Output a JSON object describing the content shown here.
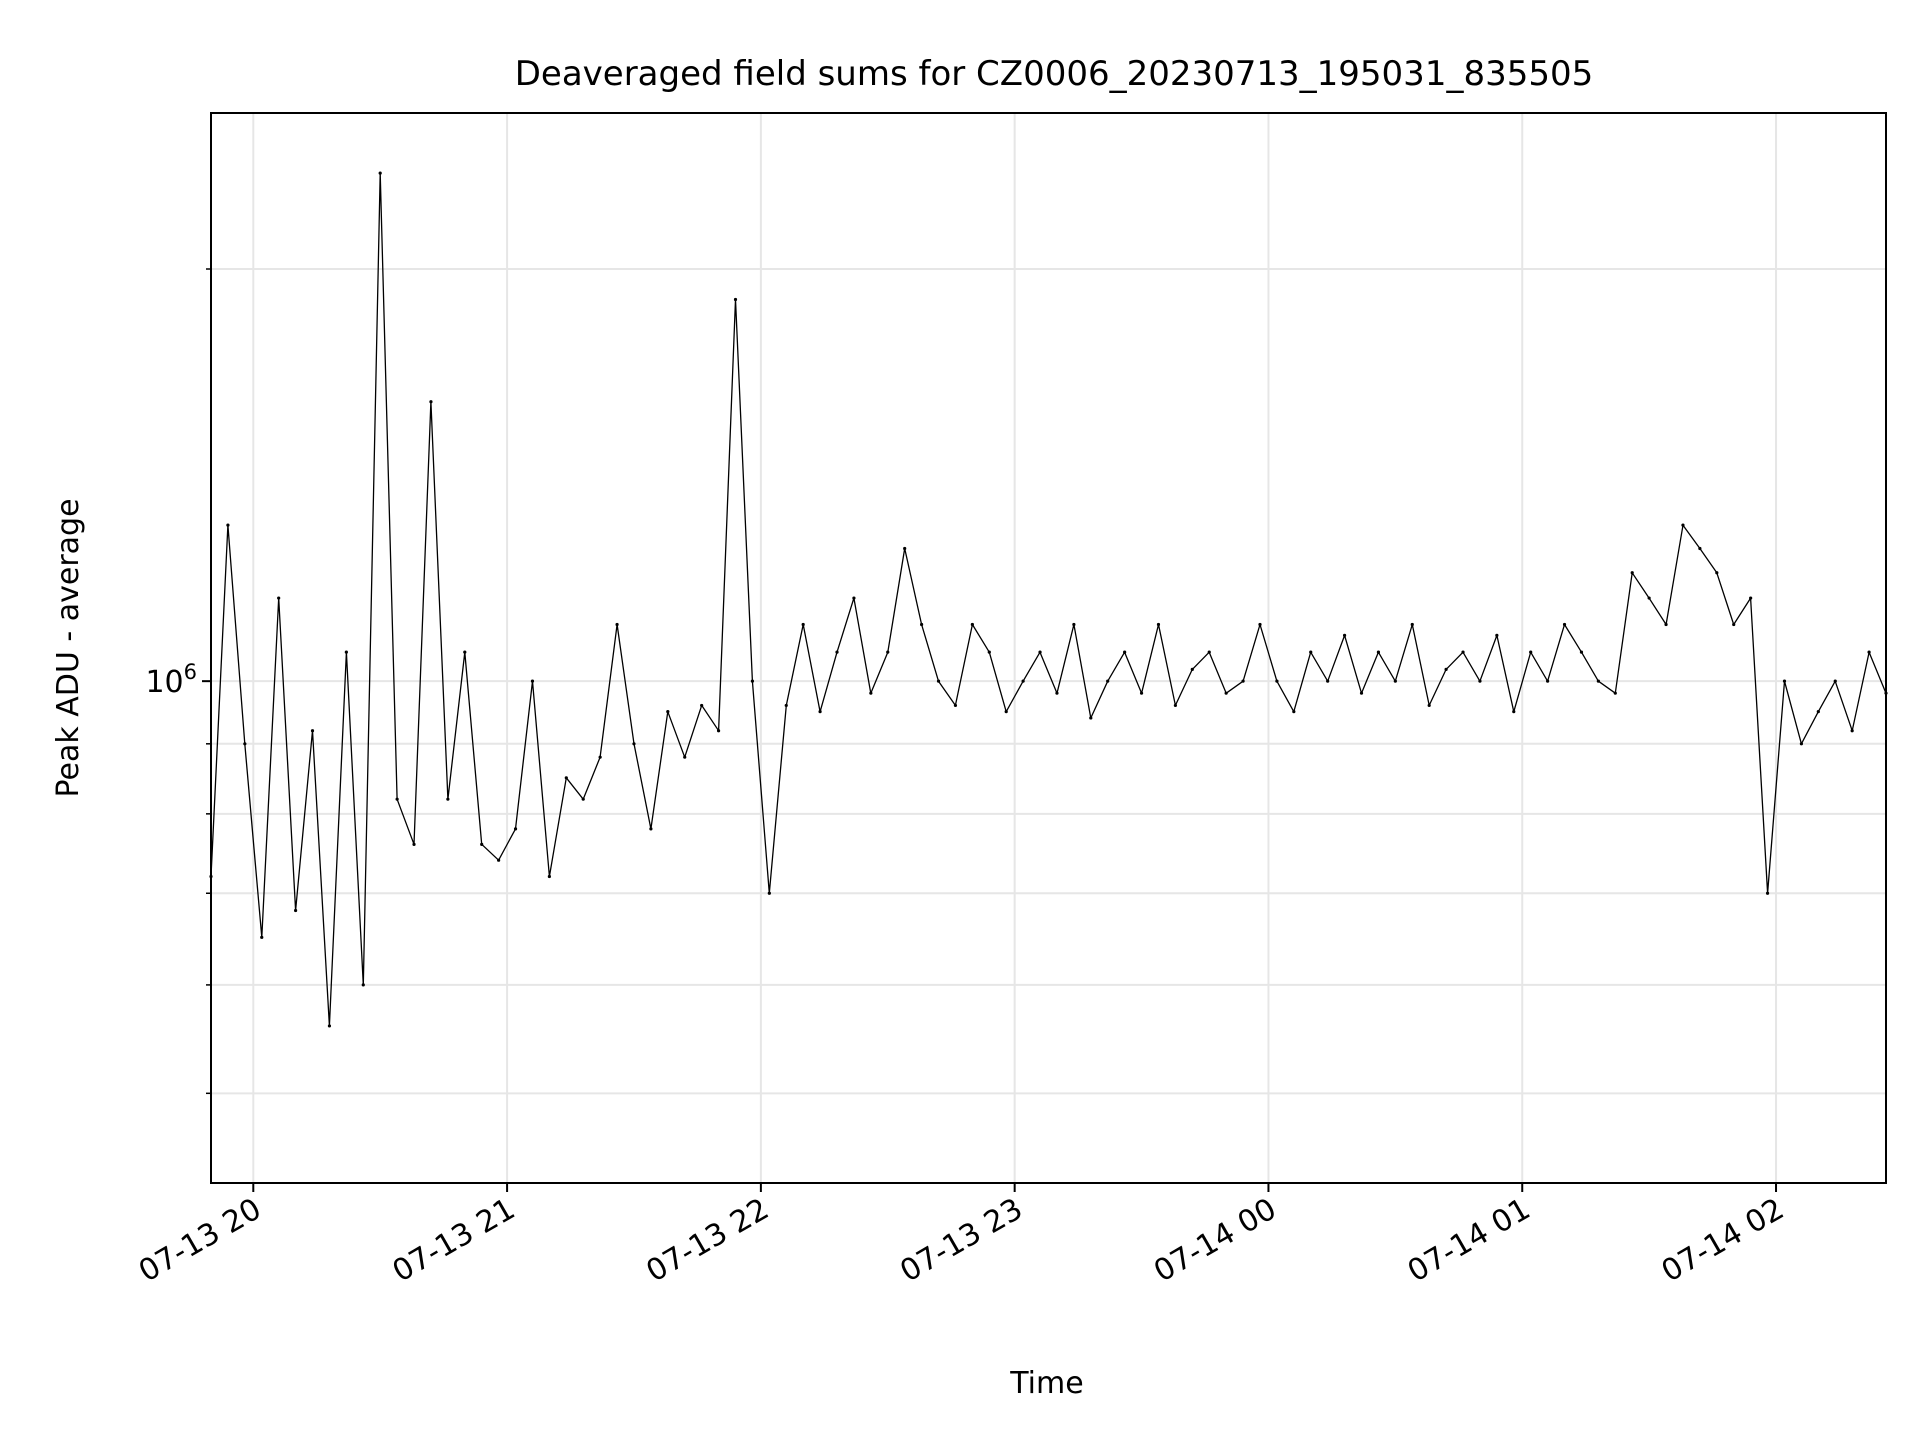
{
  "chart_data": {
    "type": "line",
    "title": "Deaveraged field sums for CZ0006_20230713_195031_835505",
    "xlabel": "Time",
    "ylabel": "Peak ADU - average",
    "yscale": "log",
    "grid": true,
    "legend": "none",
    "line_color": "#000000",
    "grid_color": "#e6e6e6",
    "xlim": [
      "2023-07-13 19:50",
      "2023-07-14 02:26"
    ],
    "ylim": [
      430000,
      2600000
    ],
    "x_ticks": [
      {
        "value": "2023-07-13 20:00",
        "label": "07-13 20"
      },
      {
        "value": "2023-07-13 21:00",
        "label": "07-13 21"
      },
      {
        "value": "2023-07-13 22:00",
        "label": "07-13 22"
      },
      {
        "value": "2023-07-13 23:00",
        "label": "07-13 23"
      },
      {
        "value": "2023-07-14 00:00",
        "label": "07-14 00"
      },
      {
        "value": "2023-07-14 01:00",
        "label": "07-14 01"
      },
      {
        "value": "2023-07-14 02:00",
        "label": "07-14 02"
      }
    ],
    "y_major_ticks": [
      {
        "value": 1000000,
        "base": "10",
        "exp": "6"
      }
    ],
    "y_minor_ticks": [
      500000,
      600000,
      700000,
      800000,
      900000,
      2000000
    ],
    "series": [
      {
        "x": [
          "2023-07-13 19:50",
          "2023-07-13 19:54",
          "2023-07-13 19:58",
          "2023-07-13 20:02",
          "2023-07-13 20:06",
          "2023-07-13 20:10",
          "2023-07-13 20:14",
          "2023-07-13 20:18",
          "2023-07-13 20:22",
          "2023-07-13 20:26",
          "2023-07-13 20:30",
          "2023-07-13 20:34",
          "2023-07-13 20:38",
          "2023-07-13 20:42",
          "2023-07-13 20:46",
          "2023-07-13 20:50",
          "2023-07-13 20:54",
          "2023-07-13 20:58",
          "2023-07-13 21:02",
          "2023-07-13 21:06",
          "2023-07-13 21:10",
          "2023-07-13 21:14",
          "2023-07-13 21:18",
          "2023-07-13 21:22",
          "2023-07-13 21:26",
          "2023-07-13 21:30",
          "2023-07-13 21:34",
          "2023-07-13 21:38",
          "2023-07-13 21:42",
          "2023-07-13 21:46",
          "2023-07-13 21:50",
          "2023-07-13 21:54",
          "2023-07-13 21:58",
          "2023-07-13 22:02",
          "2023-07-13 22:06",
          "2023-07-13 22:10",
          "2023-07-13 22:14",
          "2023-07-13 22:18",
          "2023-07-13 22:22",
          "2023-07-13 22:26",
          "2023-07-13 22:30",
          "2023-07-13 22:34",
          "2023-07-13 22:38",
          "2023-07-13 22:42",
          "2023-07-13 22:46",
          "2023-07-13 22:50",
          "2023-07-13 22:54",
          "2023-07-13 22:58",
          "2023-07-13 23:02",
          "2023-07-13 23:06",
          "2023-07-13 23:10",
          "2023-07-13 23:14",
          "2023-07-13 23:18",
          "2023-07-13 23:22",
          "2023-07-13 23:26",
          "2023-07-13 23:30",
          "2023-07-13 23:34",
          "2023-07-13 23:38",
          "2023-07-13 23:42",
          "2023-07-13 23:46",
          "2023-07-13 23:50",
          "2023-07-13 23:54",
          "2023-07-13 23:58",
          "2023-07-14 00:02",
          "2023-07-14 00:06",
          "2023-07-14 00:10",
          "2023-07-14 00:14",
          "2023-07-14 00:18",
          "2023-07-14 00:22",
          "2023-07-14 00:26",
          "2023-07-14 00:30",
          "2023-07-14 00:34",
          "2023-07-14 00:38",
          "2023-07-14 00:42",
          "2023-07-14 00:46",
          "2023-07-14 00:50",
          "2023-07-14 00:54",
          "2023-07-14 00:58",
          "2023-07-14 01:02",
          "2023-07-14 01:06",
          "2023-07-14 01:10",
          "2023-07-14 01:14",
          "2023-07-14 01:18",
          "2023-07-14 01:22",
          "2023-07-14 01:26",
          "2023-07-14 01:30",
          "2023-07-14 01:34",
          "2023-07-14 01:38",
          "2023-07-14 01:42",
          "2023-07-14 01:46",
          "2023-07-14 01:50",
          "2023-07-14 01:54",
          "2023-07-14 01:58",
          "2023-07-14 02:02",
          "2023-07-14 02:06",
          "2023-07-14 02:10",
          "2023-07-14 02:14",
          "2023-07-14 02:18",
          "2023-07-14 02:22",
          "2023-07-14 02:26"
        ],
        "y": [
          720000,
          1300000,
          900000,
          650000,
          1150000,
          680000,
          920000,
          560000,
          1050000,
          600000,
          2350000,
          820000,
          760000,
          1600000,
          820000,
          1050000,
          760000,
          740000,
          780000,
          1000000,
          720000,
          850000,
          820000,
          880000,
          1100000,
          900000,
          780000,
          950000,
          880000,
          960000,
          920000,
          1900000,
          1000000,
          700000,
          960000,
          1100000,
          950000,
          1050000,
          1150000,
          980000,
          1050000,
          1250000,
          1100000,
          1000000,
          960000,
          1100000,
          1050000,
          950000,
          1000000,
          1050000,
          980000,
          1100000,
          940000,
          1000000,
          1050000,
          980000,
          1100000,
          960000,
          1020000,
          1050000,
          980000,
          1000000,
          1100000,
          1000000,
          950000,
          1050000,
          1000000,
          1080000,
          980000,
          1050000,
          1000000,
          1100000,
          960000,
          1020000,
          1050000,
          1000000,
          1080000,
          950000,
          1050000,
          1000000,
          1100000,
          1050000,
          1000000,
          980000,
          1200000,
          1150000,
          1100000,
          1300000,
          1250000,
          1200000,
          1100000,
          1150000,
          700000,
          1000000,
          900000,
          950000,
          1000000,
          920000,
          1050000,
          980000
        ]
      }
    ]
  }
}
